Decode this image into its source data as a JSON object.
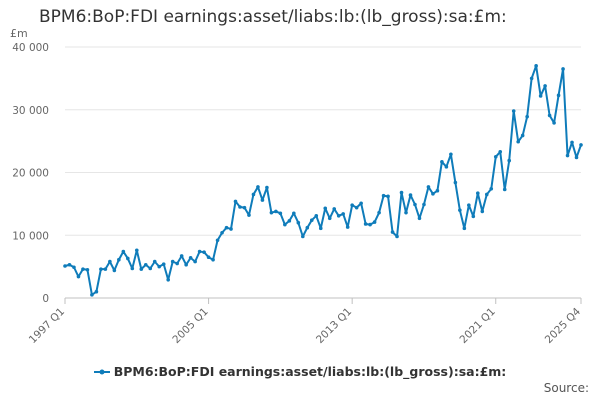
{
  "chart_data": {
    "type": "line",
    "title": "BPM6:BoP:FDI earnings:asset/liabs:lb:(lb_gross):sa:£m:",
    "ylabel": "£m",
    "xlabel": "",
    "ylim": [
      0,
      40000
    ],
    "yticks": [
      0,
      10000,
      20000,
      30000,
      40000
    ],
    "ytick_labels": [
      "0",
      "10 000",
      "20 000",
      "30 000",
      "40 000"
    ],
    "xtick_labels": [
      "1997 Q1",
      "2005 Q1",
      "2013 Q1",
      "2021 Q1",
      "2025 Q4"
    ],
    "xtick_indices": [
      0,
      32,
      64,
      96,
      115
    ],
    "grid": true,
    "legend_position": "bottom",
    "series": [
      {
        "name": "BPM6:BoP:FDI earnings:asset/liabs:lb:(lb_gross):sa:£m:",
        "color": "#0f7cba",
        "start": "1997 Q1",
        "values": [
          5100,
          5300,
          4900,
          3400,
          4600,
          4500,
          500,
          1000,
          4600,
          4600,
          5800,
          4400,
          6100,
          7400,
          6300,
          4700,
          7600,
          4600,
          5300,
          4700,
          5800,
          5000,
          5400,
          2900,
          5800,
          5500,
          6700,
          5300,
          6400,
          5800,
          7400,
          7300,
          6500,
          6100,
          9200,
          10400,
          11200,
          11000,
          15400,
          14500,
          14400,
          13200,
          16500,
          17700,
          15600,
          17600,
          13600,
          13800,
          13500,
          11700,
          12300,
          13500,
          12000,
          9800,
          11200,
          12400,
          13100,
          11100,
          14300,
          12700,
          14200,
          13100,
          13400,
          11300,
          14800,
          14400,
          15100,
          11800,
          11700,
          12100,
          13600,
          16300,
          16200,
          10500,
          9800,
          16800,
          13600,
          16400,
          14900,
          12700,
          14900,
          17700,
          16600,
          17100,
          21700,
          20900,
          22900,
          18400,
          14000,
          11100,
          14800,
          13000,
          16700,
          13800,
          16500,
          17400,
          22500,
          23300,
          17300,
          21900,
          29800,
          24900,
          25900,
          28900,
          35000,
          37000,
          32200,
          33800,
          29100,
          27900,
          32300,
          36500,
          22700,
          24800,
          22400,
          24400
        ]
      }
    ]
  },
  "source_label": "Source:"
}
